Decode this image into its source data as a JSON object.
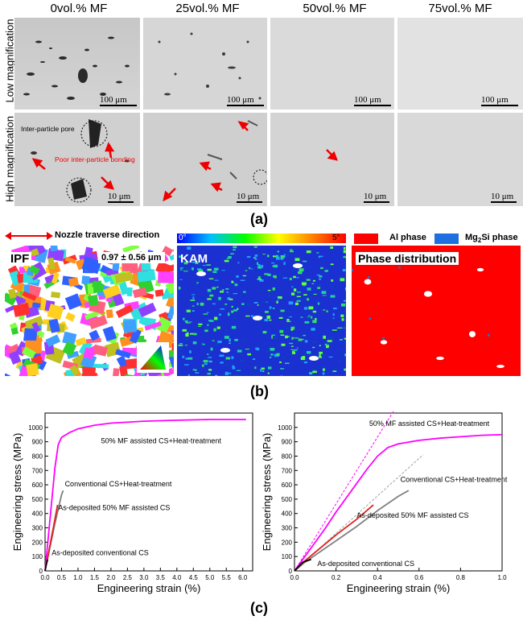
{
  "micrographs": {
    "columns": [
      "0vol.% MF",
      "25vol.% MF",
      "50vol.% MF",
      "75vol.% MF"
    ],
    "rows": [
      "Low magnification",
      "High magnification"
    ],
    "scale_low": "100 μm",
    "scale_high": "10 μm",
    "annotation_pore": "Inter-particle pore",
    "annotation_bonding": "Poor inter-particle bonding",
    "panel_label": "(a)"
  },
  "ebsd": {
    "direction_label": "Nozzle traverse direction",
    "ipf_label": "IPF",
    "grain_size": "0.97 ± 0.56 μm",
    "kam_label": "KAM",
    "kam_min": "0°",
    "kam_max": "5°",
    "legend_al": "Al phase",
    "legend_mg2si_prefix": "Mg",
    "legend_mg2si_sub": "2",
    "legend_mg2si_suffix": "Si  phase",
    "phase_label": "Phase distribution",
    "panel_label": "(b)",
    "colors": {
      "al": "#ff0000",
      "mg2si": "#1f6fe0"
    }
  },
  "chart_data": [
    {
      "type": "line",
      "xlabel": "Engineering strain (%)",
      "ylabel": "Engineering stress (MPa)",
      "xlim": [
        0,
        6.3
      ],
      "ylim": [
        0,
        1100
      ],
      "xticks": [
        "0.0",
        "0.5",
        "1.0",
        "1.5",
        "2.0",
        "2.5",
        "3.0",
        "3.5",
        "4.0",
        "4.5",
        "5.0",
        "5.5",
        "6.0"
      ],
      "yticks": [
        "0",
        "100",
        "200",
        "300",
        "400",
        "500",
        "600",
        "700",
        "800",
        "900",
        "1000"
      ],
      "series": [
        {
          "name": "50% MF assisted CS+Heat-treatment",
          "color": "#ff00ff",
          "x": [
            0,
            0.1,
            0.2,
            0.3,
            0.4,
            0.5,
            0.75,
            1.0,
            1.5,
            2.0,
            3.0,
            4.0,
            5.0,
            6.1
          ],
          "y": [
            0,
            240,
            480,
            720,
            880,
            930,
            965,
            990,
            1015,
            1030,
            1043,
            1050,
            1055,
            1055
          ]
        },
        {
          "name": "Conventional CS+Heat-treatment",
          "color": "#808080",
          "x": [
            0,
            0.1,
            0.2,
            0.3,
            0.4,
            0.5,
            0.55
          ],
          "y": [
            0,
            110,
            220,
            330,
            430,
            530,
            560
          ]
        },
        {
          "name": "As-deposited 50% MF assisted CS",
          "color": "#e02020",
          "x": [
            0,
            0.1,
            0.2,
            0.3,
            0.38
          ],
          "y": [
            0,
            120,
            240,
            360,
            460
          ]
        },
        {
          "name": "As-deposited conventional CS",
          "color": "#000000",
          "x": [
            0,
            0.04,
            0.08
          ],
          "y": [
            0,
            50,
            80
          ]
        }
      ],
      "labels": [
        {
          "text": "50% MF assisted CS+Heat-treatment",
          "x": 1.7,
          "y": 890
        },
        {
          "text": "Conventional CS+Heat-treatment",
          "x": 0.6,
          "y": 590
        },
        {
          "text": "As-deposited 50% MF assisted CS",
          "x": 0.4,
          "y": 425
        },
        {
          "text": "As-deposited conventional CS",
          "x": 0.2,
          "y": 110
        }
      ]
    },
    {
      "type": "line",
      "xlabel": "Engineering strain (%)",
      "ylabel": "Engineering stress (MPa)",
      "xlim": [
        0,
        1.0
      ],
      "ylim": [
        0,
        1100
      ],
      "xticks": [
        "0.0",
        "0.2",
        "0.4",
        "0.6",
        "0.8",
        "1.0"
      ],
      "yticks": [
        "0",
        "100",
        "200",
        "300",
        "400",
        "500",
        "600",
        "700",
        "800",
        "900",
        "1000"
      ],
      "series": [
        {
          "name": "50% MF assisted CS+Heat-treatment",
          "color": "#ff00ff",
          "x": [
            0,
            0.05,
            0.1,
            0.15,
            0.2,
            0.25,
            0.3,
            0.35,
            0.4,
            0.45,
            0.5,
            0.6,
            0.7,
            0.8,
            0.9,
            1.0
          ],
          "y": [
            0,
            100,
            200,
            300,
            410,
            510,
            610,
            710,
            800,
            860,
            885,
            910,
            925,
            935,
            945,
            950
          ]
        },
        {
          "name": "Conventional CS+Heat-treatment",
          "color": "#808080",
          "x": [
            0,
            0.05,
            0.1,
            0.2,
            0.3,
            0.4,
            0.5,
            0.55
          ],
          "y": [
            0,
            60,
            110,
            210,
            310,
            420,
            520,
            560
          ]
        },
        {
          "name": "As-deposited 50% MF assisted CS",
          "color": "#e02020",
          "x": [
            0,
            0.05,
            0.1,
            0.2,
            0.3,
            0.38
          ],
          "y": [
            0,
            70,
            130,
            250,
            360,
            460
          ]
        },
        {
          "name": "As-deposited conventional CS",
          "color": "#000000",
          "x": [
            0,
            0.04,
            0.08
          ],
          "y": [
            0,
            60,
            80
          ]
        }
      ],
      "guides": [
        {
          "color": "#ff00ff",
          "x": [
            0,
            0.48
          ],
          "y": [
            0,
            1120
          ]
        },
        {
          "color": "#a0a0a0",
          "x": [
            0,
            0.62
          ],
          "y": [
            0,
            810
          ]
        }
      ],
      "labels": [
        {
          "text": "50% MF assisted CS+Heat-treatment",
          "x": 0.36,
          "y": 1010
        },
        {
          "text": "Conventional CS+Heat-treatment",
          "x": 0.51,
          "y": 620
        },
        {
          "text": "As-deposited 50% MF assisted CS",
          "x": 0.3,
          "y": 370
        },
        {
          "text": "As-deposited conventional CS",
          "x": 0.11,
          "y": 35
        }
      ]
    }
  ],
  "charts_panel_label": "(c)"
}
